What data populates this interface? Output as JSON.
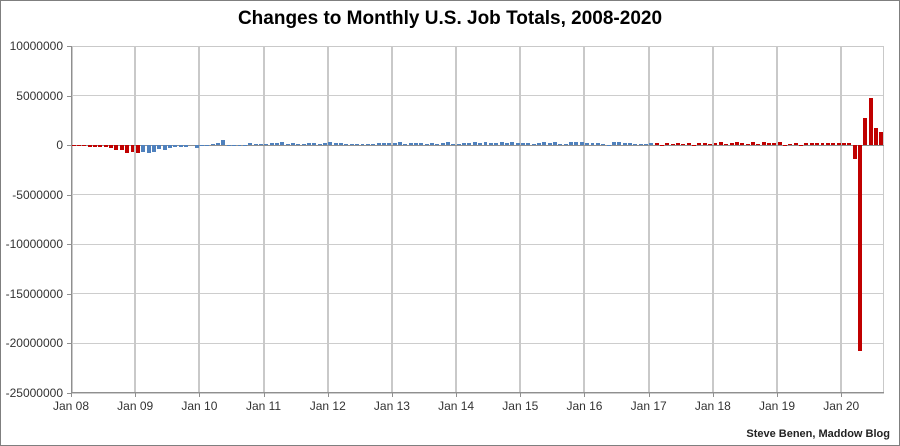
{
  "attribution": "Steve Benen, Maddow Blog",
  "colors": {
    "background": "#ffffff",
    "frame_border": "#7f7f7f",
    "grid": "#c9c9c9",
    "axis": "#8f8f8f",
    "text": "#333333",
    "title_text": "#000000"
  },
  "chart_data": {
    "type": "bar",
    "title": "Changes to Monthly U.S. Job Totals, 2008-2020",
    "xlabel": "",
    "ylabel": "",
    "unit": "jobs (monthly change in U.S. nonfarm payrolls)",
    "first_month": "Jan 2008",
    "last_month": "Aug 2020",
    "grid": true,
    "legend": false,
    "y_axis": {
      "min": -25000000,
      "max": 10000000,
      "step": 5000000,
      "ticks": [
        {
          "value": 10000000,
          "label": "10000000"
        },
        {
          "value": 5000000,
          "label": "5000000"
        },
        {
          "value": 0,
          "label": "0"
        },
        {
          "value": -5000000,
          "label": "-5000000"
        },
        {
          "value": -10000000,
          "label": "-10000000"
        },
        {
          "value": -15000000,
          "label": "-15000000"
        },
        {
          "value": -20000000,
          "label": "-20000000"
        },
        {
          "value": -25000000,
          "label": "-25000000"
        }
      ]
    },
    "x_axis": {
      "months_per_tick": 12,
      "ticks": [
        {
          "label": "Jan 08",
          "month_index": 0
        },
        {
          "label": "Jan 09",
          "month_index": 12
        },
        {
          "label": "Jan 10",
          "month_index": 24
        },
        {
          "label": "Jan 11",
          "month_index": 36
        },
        {
          "label": "Jan 12",
          "month_index": 48
        },
        {
          "label": "Jan 13",
          "month_index": 60
        },
        {
          "label": "Jan 14",
          "month_index": 72
        },
        {
          "label": "Jan 15",
          "month_index": 84
        },
        {
          "label": "Jan 16",
          "month_index": 96
        },
        {
          "label": "Jan 17",
          "month_index": 108
        },
        {
          "label": "Jan 18",
          "month_index": 120
        },
        {
          "label": "Jan 19",
          "month_index": 132
        },
        {
          "label": "Jan 20",
          "month_index": 144
        }
      ]
    },
    "value_unit": "thousands_of_jobs",
    "value_multiplier": 1000,
    "values": [
      -17,
      -79,
      -78,
      -210,
      -185,
      -165,
      -210,
      -259,
      -452,
      -474,
      -765,
      -697,
      -798,
      -701,
      -826,
      -684,
      -354,
      -467,
      -327,
      -216,
      -227,
      -198,
      -6,
      -283,
      18,
      -50,
      156,
      251,
      516,
      -122,
      -61,
      -42,
      -52,
      241,
      137,
      71,
      70,
      168,
      212,
      322,
      102,
      217,
      106,
      122,
      221,
      183,
      164,
      196,
      360,
      226,
      243,
      96,
      110,
      88,
      160,
      150,
      161,
      225,
      203,
      214,
      197,
      280,
      141,
      203,
      199,
      177,
      149,
      202,
      164,
      237,
      274,
      84,
      144,
      222,
      203,
      304,
      229,
      267,
      243,
      203,
      271,
      243,
      321,
      256,
      221,
      265,
      84,
      251,
      273,
      228,
      277,
      150,
      149,
      295,
      280,
      271,
      168,
      233,
      225,
      153,
      43,
      297,
      291,
      176,
      249,
      124,
      164,
      155,
      216,
      232,
      50,
      207,
      145,
      210,
      139,
      208,
      18,
      261,
      216,
      146,
      176,
      324,
      155,
      175,
      268,
      208,
      165,
      270,
      108,
      277,
      196,
      227,
      312,
      56,
      153,
      216,
      62,
      178,
      166,
      219,
      193,
      185,
      261,
      184,
      214,
      251,
      -1373,
      -20787,
      2725,
      4781,
      1761,
      1371
    ],
    "colors": {
      "red": "#c00000",
      "blue": "#4f81bd"
    },
    "bar_color_segments": [
      {
        "start_index": 0,
        "end_index": 12,
        "color_key": "red"
      },
      {
        "start_index": 13,
        "end_index": 108,
        "color_key": "blue"
      },
      {
        "start_index": 109,
        "end_index": 151,
        "color_key": "red"
      }
    ]
  }
}
